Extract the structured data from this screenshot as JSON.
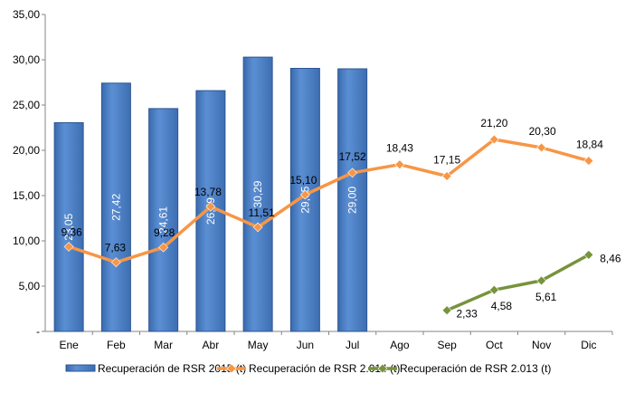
{
  "chart_data": {
    "type": "bar",
    "title": "",
    "xlabel": "",
    "ylabel": "",
    "ylim": [
      0,
      35
    ],
    "y_ticks": [
      0,
      5,
      10,
      15,
      20,
      25,
      30,
      35
    ],
    "y_tick_labels": [
      "-",
      "5,00",
      "10,00",
      "15,00",
      "20,00",
      "25,00",
      "30,00",
      "35,00"
    ],
    "grid": false,
    "legend_position": "bottom",
    "categories": [
      "Ene",
      "Feb",
      "Mar",
      "Abr",
      "May",
      "Jun",
      "Jul",
      "Ago",
      "Sep",
      "Oct",
      "Nov",
      "Dic"
    ],
    "series": [
      {
        "name": "Recuperación de RSR 2015 (t)",
        "type": "bar",
        "color": "#4F81BD",
        "values": [
          23.05,
          27.42,
          24.61,
          26.59,
          30.29,
          29.05,
          29.0,
          null,
          null,
          null,
          null,
          null
        ],
        "labels": [
          "23,05",
          "27,42",
          "24,61",
          "26,59",
          "30,29",
          "29,05",
          "29,00",
          null,
          null,
          null,
          null,
          null
        ]
      },
      {
        "name": "Recuperación de RSR 2.014 (t)",
        "type": "line",
        "color": "#F79646",
        "marker": "diamond",
        "values": [
          9.36,
          7.63,
          9.28,
          13.78,
          11.51,
          15.1,
          17.52,
          18.43,
          17.15,
          21.2,
          20.3,
          18.84
        ],
        "labels": [
          "9,36",
          "7,63",
          "9,28",
          "13,78",
          "11,51",
          "15,10",
          "17,52",
          "18,43",
          "17,15",
          "21,20",
          "20,30",
          "18,84"
        ]
      },
      {
        "name": "Recuperación de RSR 2.013 (t)",
        "type": "line",
        "color": "#77933C",
        "marker": "diamond",
        "values": [
          null,
          null,
          null,
          null,
          null,
          null,
          null,
          null,
          2.33,
          4.58,
          5.61,
          8.46
        ],
        "labels": [
          null,
          null,
          null,
          null,
          null,
          null,
          null,
          null,
          "2,33",
          "4,58",
          "5,61",
          "8,46"
        ]
      }
    ]
  }
}
